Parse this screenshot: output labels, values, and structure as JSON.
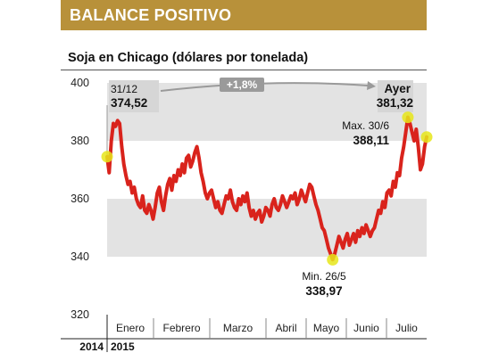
{
  "header": {
    "title": "BALANCE POSITIVO",
    "color": "#b8913a"
  },
  "chart_data": {
    "type": "line",
    "title": "Soja en Chicago (dólares por tonelada)",
    "ylim": [
      320,
      400
    ],
    "yticks": [
      320,
      340,
      360,
      380,
      400
    ],
    "bands": [
      [
        380,
        400
      ],
      [
        340,
        360
      ]
    ],
    "months": [
      "Enero",
      "Febrero",
      "Marzo",
      "Abril",
      "Mayo",
      "Junio",
      "Julio"
    ],
    "years": [
      "2014",
      "2015"
    ],
    "line_color": "#d9231c",
    "series": [
      {
        "values": [
          374.52,
          369,
          380,
          386,
          385,
          387,
          386,
          378,
          372,
          368,
          365,
          366,
          362,
          364,
          360,
          358,
          357,
          361,
          356,
          355,
          358,
          356,
          353,
          357,
          362,
          364,
          359,
          356,
          361,
          365,
          367,
          363,
          368,
          366,
          370,
          368,
          372,
          369,
          374,
          375,
          371,
          373,
          376,
          378,
          374,
          369,
          366,
          362,
          360,
          362,
          363,
          360,
          357,
          359,
          356,
          355,
          358,
          361,
          360,
          363,
          359,
          357,
          356,
          360,
          358,
          361,
          359,
          362,
          357,
          354,
          356,
          353,
          355,
          356,
          352,
          354,
          357,
          356,
          354,
          358,
          360,
          357,
          356,
          358,
          361,
          359,
          357,
          359,
          361,
          360,
          362,
          358,
          360,
          363,
          361,
          359,
          362,
          365,
          364,
          361,
          358,
          356,
          353,
          350,
          349,
          346,
          343,
          341,
          338.97,
          341,
          344,
          347,
          345,
          343,
          346,
          348,
          344,
          346,
          348,
          345,
          349,
          347,
          350,
          348,
          351,
          349,
          347,
          349,
          350,
          353,
          356,
          355,
          359,
          357,
          362,
          363,
          361,
          366,
          364,
          369,
          368,
          374,
          378,
          383,
          388.11,
          386,
          383,
          380,
          384,
          378,
          370,
          372,
          378,
          381.32
        ]
      }
    ],
    "annotations": {
      "start": {
        "date": "31/12",
        "value": "374,52"
      },
      "change": "+1,8%",
      "end": {
        "date": "Ayer",
        "value": "381,32"
      },
      "max": {
        "date": "Max. 30/6",
        "value": "388,11"
      },
      "min": {
        "date": "Min. 26/5",
        "value": "338,97"
      }
    },
    "marker_color": "#e6e61a"
  }
}
